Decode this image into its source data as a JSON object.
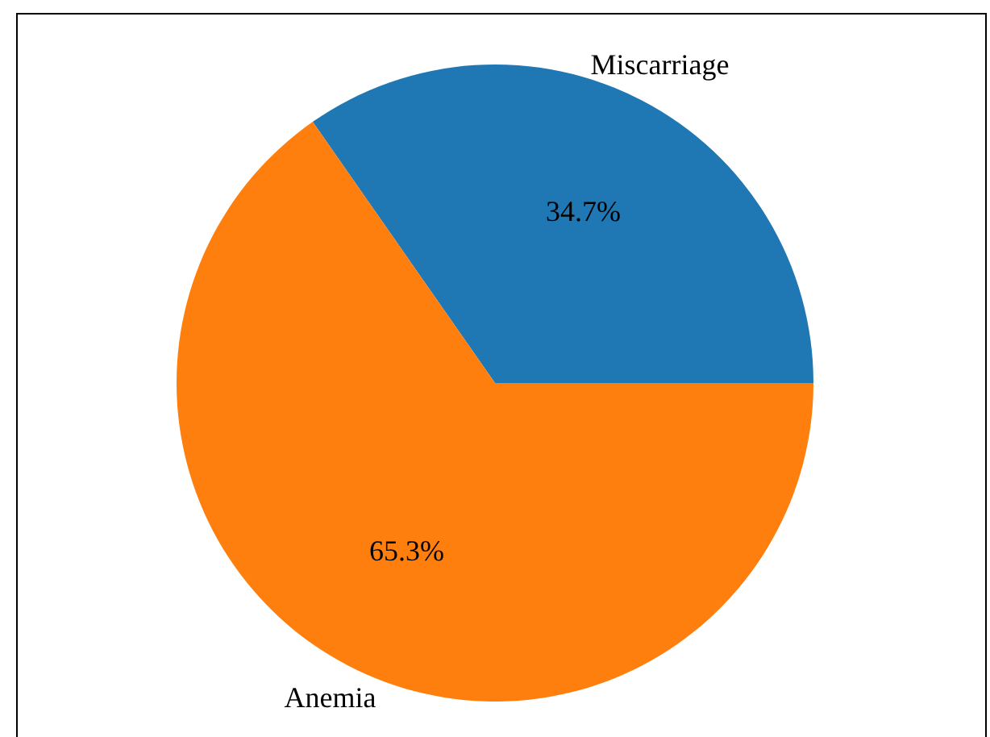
{
  "chart_data": {
    "type": "pie",
    "categories": [
      "Miscarriage",
      "Anemia"
    ],
    "values": [
      34.7,
      65.3
    ],
    "colors": [
      "#1f77b4",
      "#ff7f0e"
    ],
    "value_labels": [
      "34.7%",
      "65.3%"
    ],
    "legend": false
  }
}
